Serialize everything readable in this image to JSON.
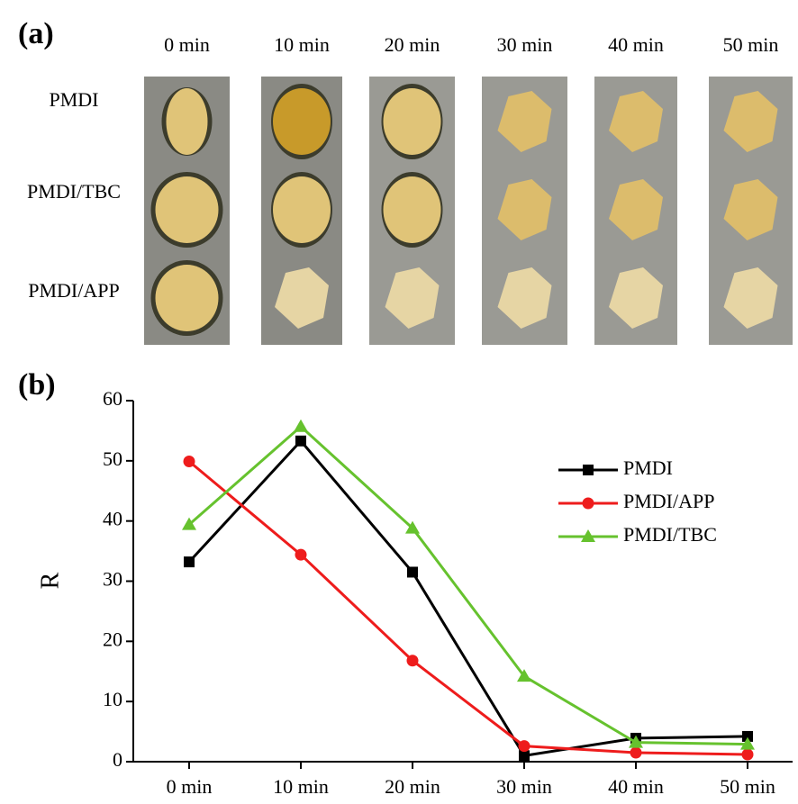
{
  "panel_a": {
    "label": "(a)",
    "columns": [
      "0 min",
      "10 min",
      "20 min",
      "30 min",
      "40 min",
      "50 min"
    ],
    "rows": [
      "PMDI",
      "PMDI/TBC",
      "PMDI/APP"
    ]
  },
  "chart_data": {
    "type": "line",
    "label": "(b)",
    "y_label": "R",
    "categories": [
      "0 min",
      "10 min",
      "20 min",
      "30 min",
      "40 min",
      "50 min"
    ],
    "series": [
      {
        "name": "PMDI",
        "color": "#000000",
        "marker": "square",
        "values": [
          33.2,
          53.3,
          31.5,
          1.0,
          3.9,
          4.2
        ]
      },
      {
        "name": "PMDI/APP",
        "color": "#ee1c1c",
        "marker": "circle",
        "values": [
          49.9,
          34.4,
          16.8,
          2.6,
          1.5,
          1.2
        ]
      },
      {
        "name": "PMDI/TBC",
        "color": "#66c22e",
        "marker": "triangle",
        "values": [
          39.4,
          55.7,
          38.8,
          14.2,
          3.2,
          2.9
        ]
      }
    ],
    "ylim": [
      0,
      60
    ],
    "yticks": [
      0,
      10,
      20,
      30,
      40,
      50,
      60
    ],
    "grid": false,
    "legend": "upper right"
  }
}
